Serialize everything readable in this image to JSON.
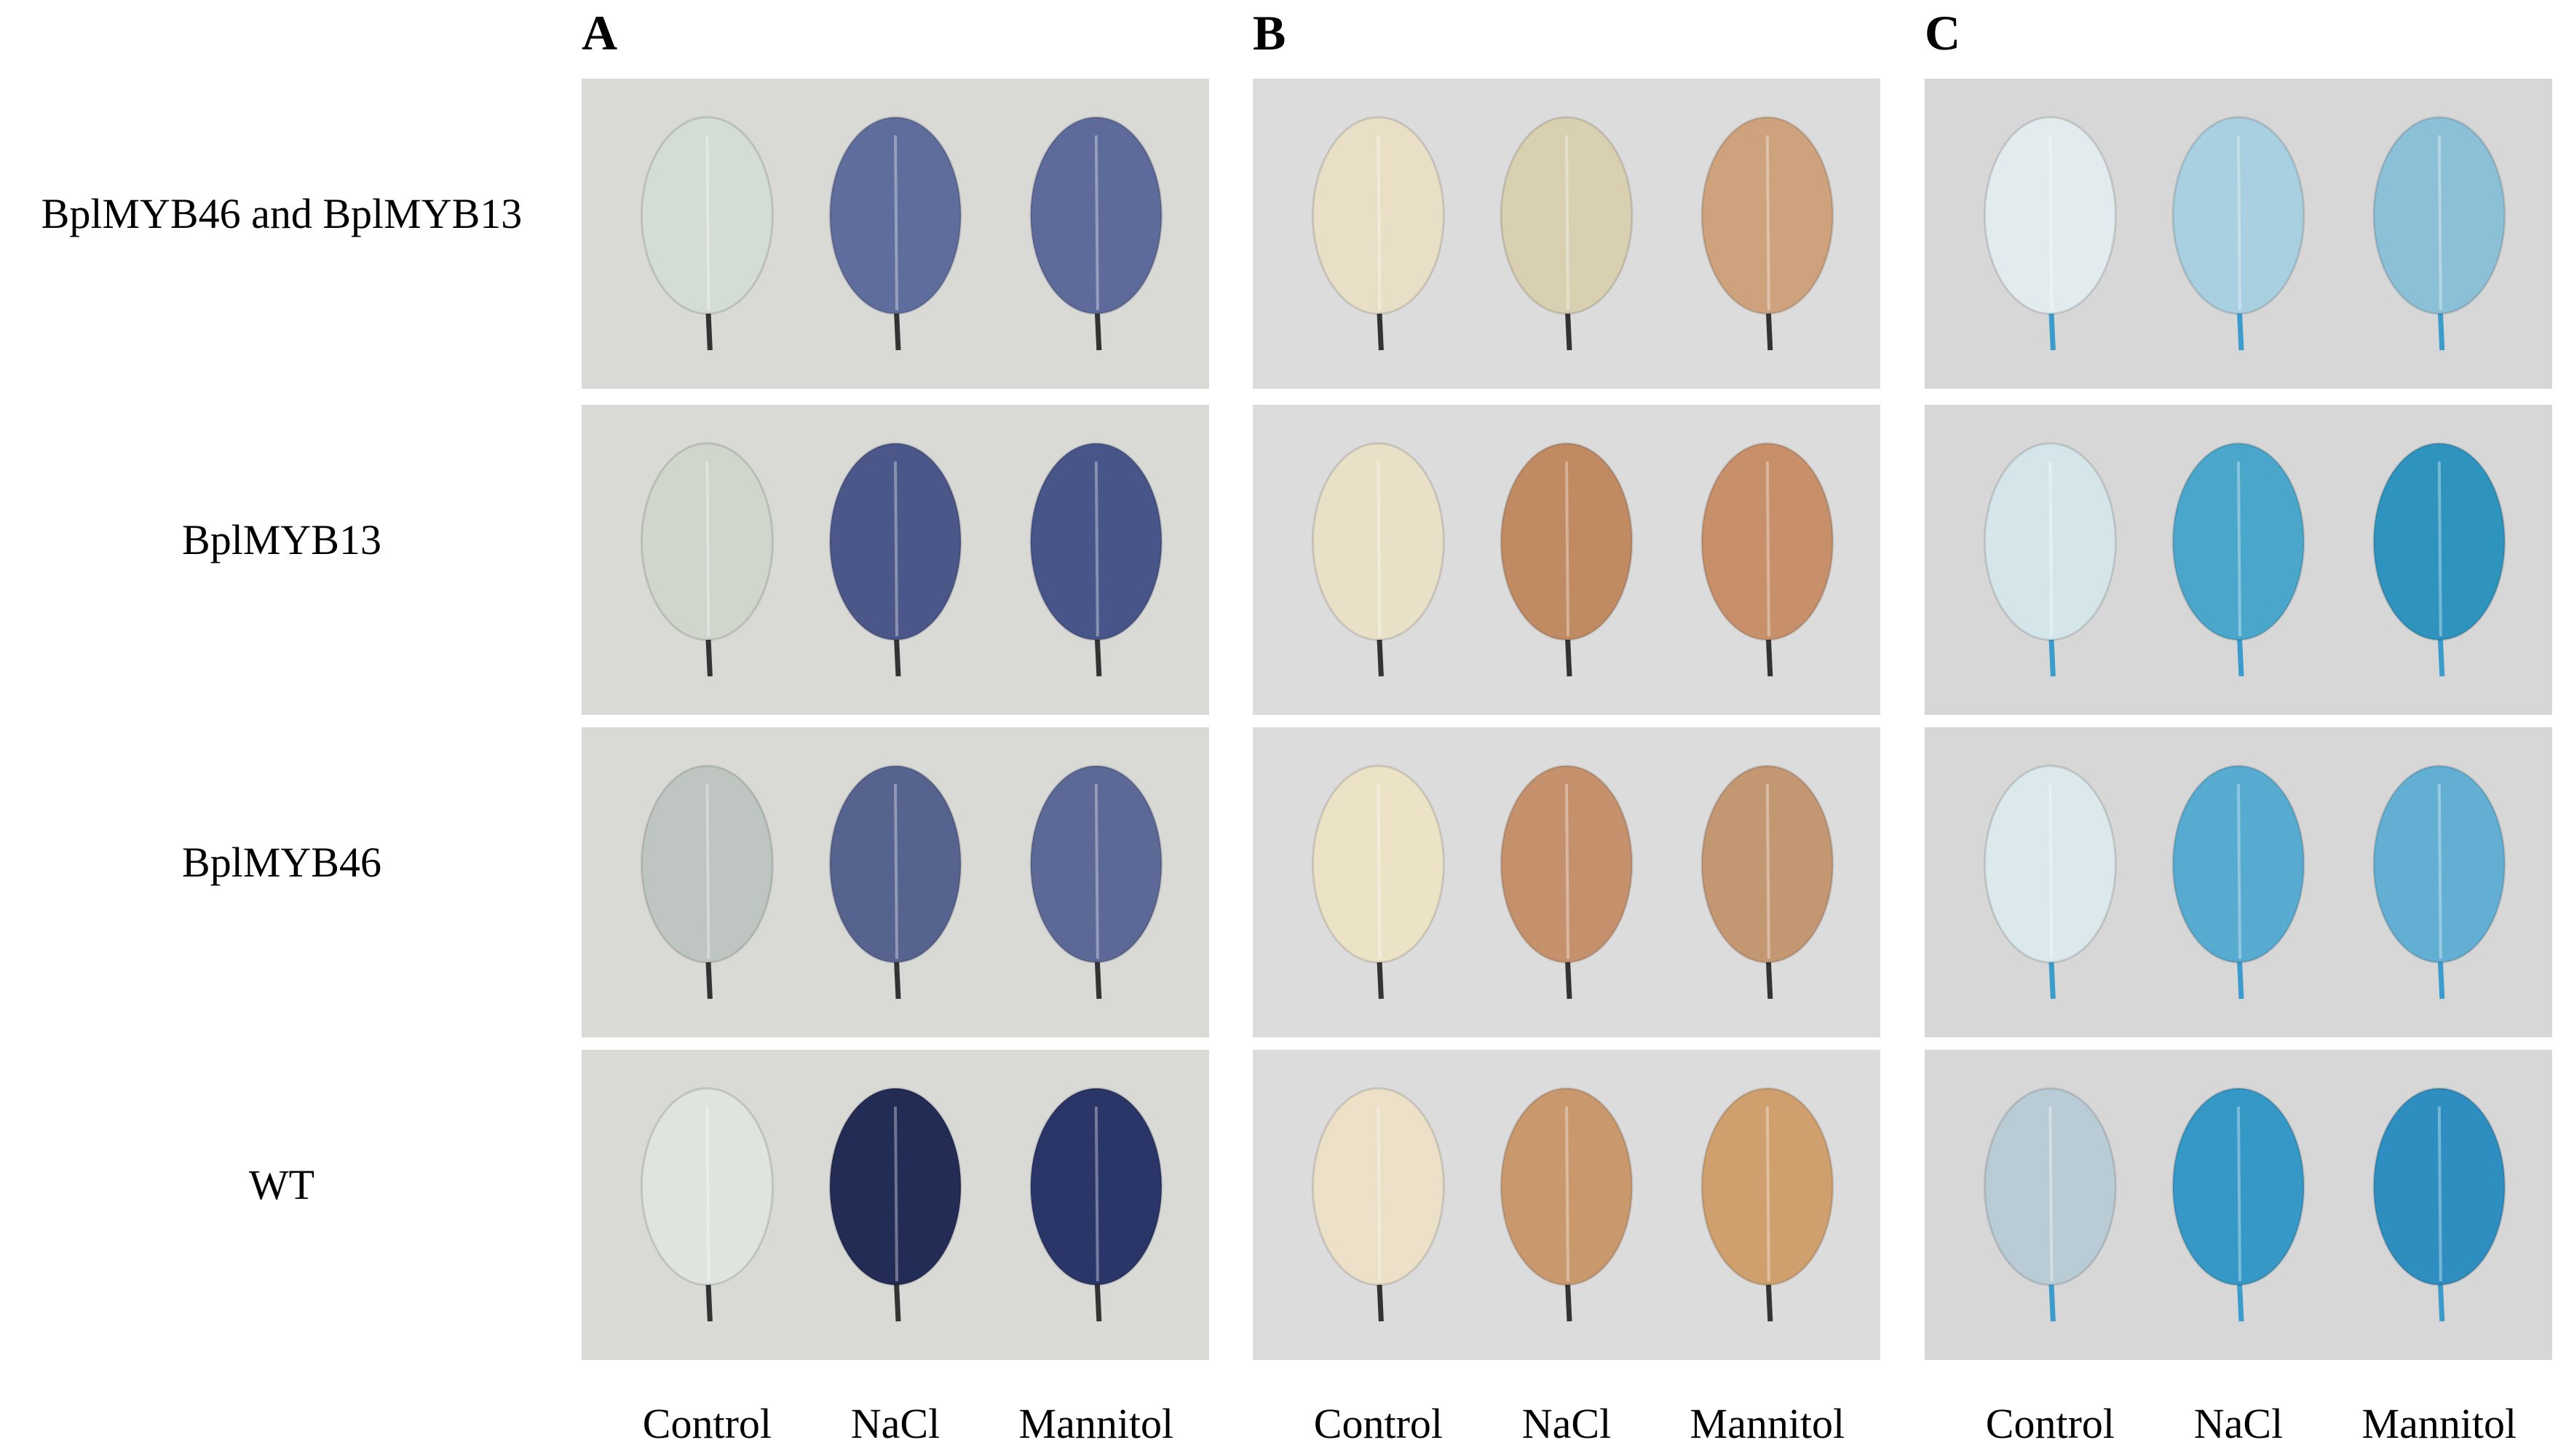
{
  "panels": [
    {
      "label": "A",
      "columns": [
        "Control",
        "NaCl",
        "Mannitol"
      ]
    },
    {
      "label": "B",
      "columns": [
        "Control",
        "NaCl",
        "Mannitol"
      ]
    },
    {
      "label": "C",
      "columns": [
        "Control",
        "NaCl",
        "Mannitol"
      ]
    }
  ],
  "rows": [
    "BplMYB46 and BplMYB13",
    "BplMYB13",
    "BplMYB46",
    "WT"
  ]
}
